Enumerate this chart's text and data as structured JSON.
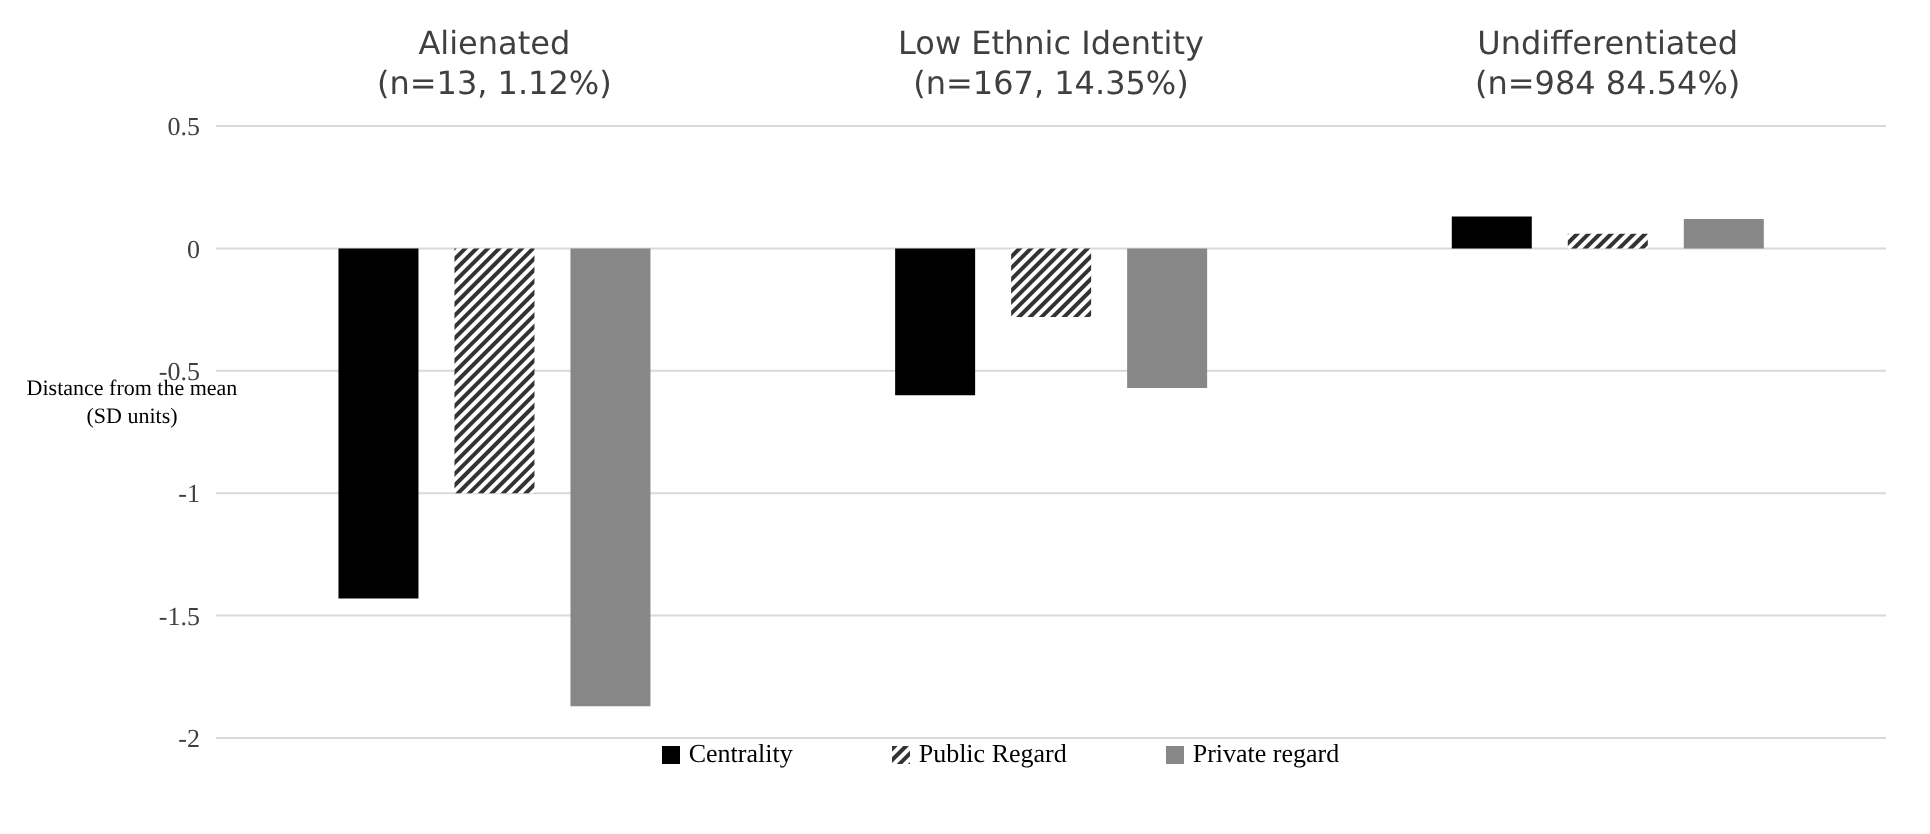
{
  "chart_data": {
    "type": "bar",
    "categories": [
      "Alienated\n(n=13, 1.12%)",
      "Low Ethnic Identity\n(n=167, 14.35%)",
      "Undifferentiated\n(n=984 84.54%)"
    ],
    "series": [
      {
        "name": "Centrality",
        "color": "#000000",
        "values": [
          -1.43,
          -0.6,
          0.13
        ]
      },
      {
        "name": "Public Regard",
        "color": "#333333",
        "values": [
          -1.0,
          -0.28,
          0.06
        ]
      },
      {
        "name": "Private regard",
        "color": "#878787",
        "values": [
          -1.87,
          -0.57,
          0.12
        ]
      }
    ],
    "ylabel": "Distance from the mean\n(SD units)",
    "ylim": [
      -2,
      0.5
    ],
    "yticks": [
      -2,
      -1.5,
      -1,
      -0.5,
      0,
      0.5
    ],
    "grid": "y",
    "legend": "bottom"
  }
}
